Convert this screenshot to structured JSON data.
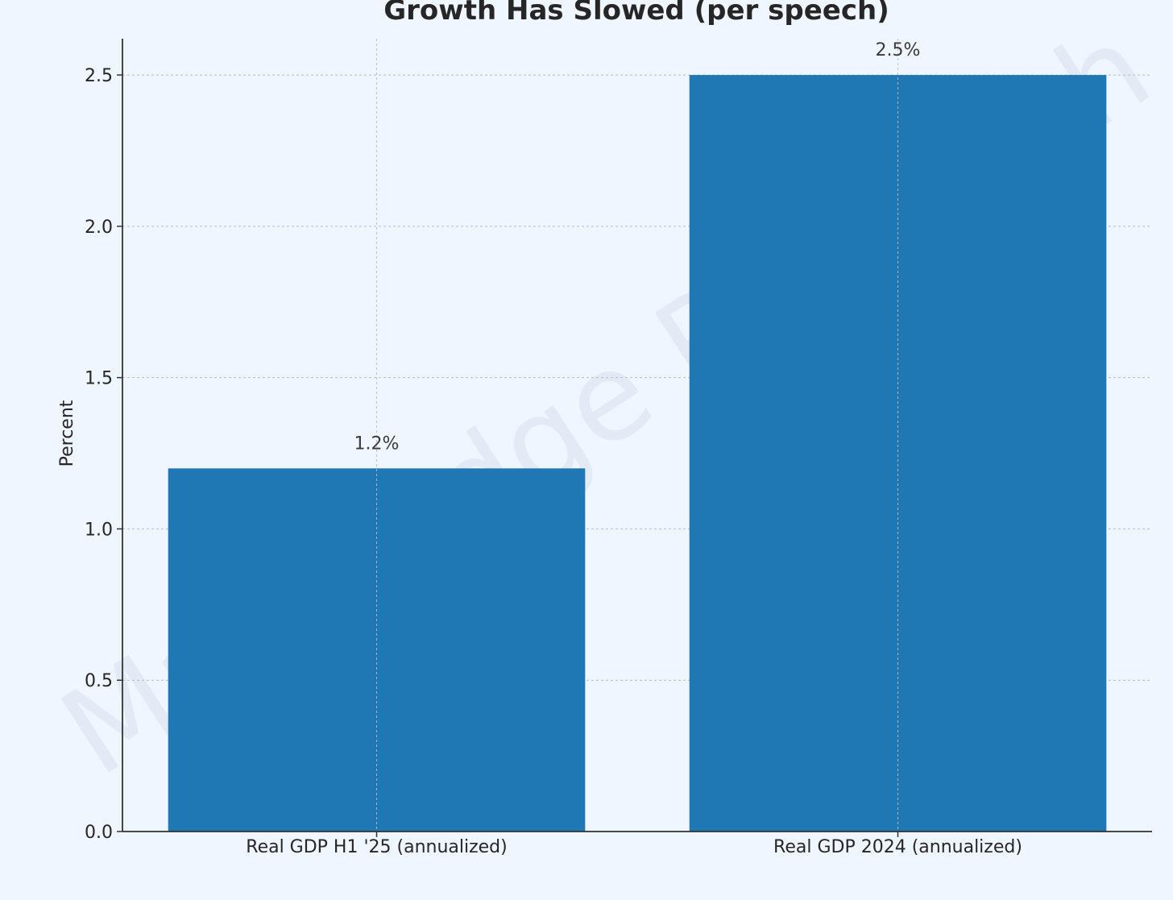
{
  "chart_data": {
    "type": "bar",
    "title": "Growth Has Slowed (per speech)",
    "xlabel": "",
    "ylabel": "Percent",
    "categories": [
      "Real GDP H1 '25 (annualized)",
      "Real GDP 2024 (annualized)"
    ],
    "values": [
      1.2,
      2.5
    ],
    "data_labels": [
      "1.2%",
      "2.5%"
    ],
    "ylim": [
      0,
      2.62
    ],
    "yticks": [
      0.0,
      0.5,
      1.0,
      1.5,
      2.0,
      2.5
    ],
    "ytick_labels": [
      "0.0",
      "0.5",
      "1.0",
      "1.5",
      "2.0",
      "2.5"
    ],
    "grid": true,
    "legend": "none",
    "bar_color": "#1f77b4",
    "watermark": "MacroEdge Research"
  }
}
